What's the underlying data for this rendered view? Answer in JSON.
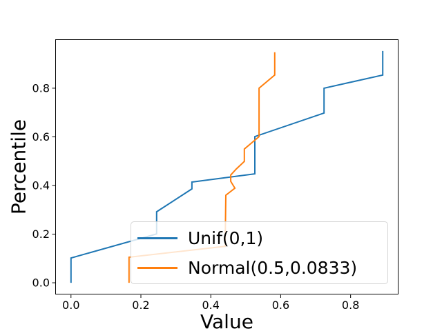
{
  "figure": {
    "background": "#ffffff"
  },
  "chart_data": {
    "type": "line",
    "title": "",
    "xlabel": "Value",
    "ylabel": "Percentile",
    "xlim": [
      -0.045,
      0.937
    ],
    "ylim": [
      -0.048,
      1.001
    ],
    "grid": false,
    "xticks": {
      "values": [
        0.0,
        0.2,
        0.4,
        0.6,
        0.8
      ],
      "labels": [
        "0.0",
        "0.2",
        "0.4",
        "0.6",
        "0.8"
      ]
    },
    "yticks": {
      "values": [
        0.0,
        0.2,
        0.4,
        0.6,
        0.8
      ],
      "labels": [
        "0.0",
        "0.2",
        "0.4",
        "0.6",
        "0.8"
      ]
    },
    "legend": {
      "position": "lower-right-inside",
      "entries": [
        {
          "label": "Unif(0,1)",
          "color": "#1f77b4"
        },
        {
          "label": "Normal(0.5,0.0833)",
          "color": "#ff7f0e"
        }
      ]
    },
    "series": [
      {
        "name": "Unif(0,1)",
        "color": "#1f77b4",
        "x": [
          0.0,
          0.0,
          0.245,
          0.245,
          0.346,
          0.346,
          0.526,
          0.526,
          0.724,
          0.724,
          0.892,
          0.892
        ],
        "y": [
          0.0,
          0.102,
          0.201,
          0.292,
          0.386,
          0.414,
          0.448,
          0.601,
          0.698,
          0.8,
          0.854,
          0.953
        ]
      },
      {
        "name": "Normal(0.5,0.0833)",
        "color": "#ff7f0e",
        "x": [
          0.166,
          0.166,
          0.441,
          0.443,
          0.469,
          0.457,
          0.457,
          0.473,
          0.496,
          0.496,
          0.538,
          0.538,
          0.583,
          0.583
        ],
        "y": [
          0.0,
          0.105,
          0.15,
          0.36,
          0.389,
          0.417,
          0.443,
          0.468,
          0.499,
          0.55,
          0.601,
          0.8,
          0.854,
          0.948
        ]
      }
    ]
  }
}
